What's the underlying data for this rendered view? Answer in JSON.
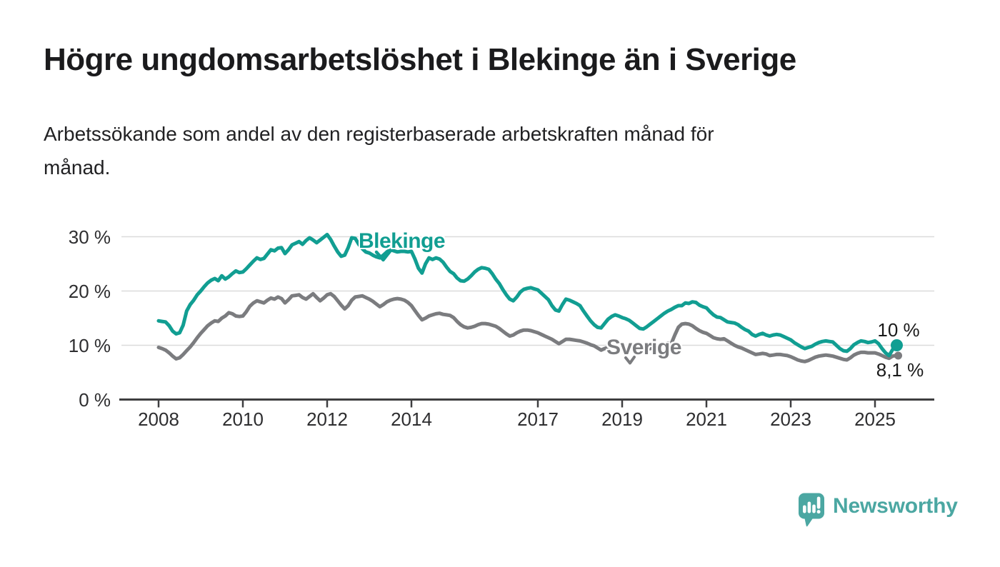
{
  "header": {
    "title": "Högre ungdomsarbetslöshet i Blekinge än i Sverige",
    "subtitle_line1": "Arbetssökande som andel av den registerbaserade arbetskraften månad för",
    "subtitle_line2": "månad."
  },
  "branding": {
    "logo_text": "Newsworthy",
    "logo_icon": "newsworthy-speech-bubble-bar-chart-icon"
  },
  "colors": {
    "blekinge": "#119e92",
    "sverige": "#7b7c7f",
    "logo_teal": "#4ba7a2",
    "grid": "#dadada",
    "axis": "#3e3e40",
    "tick_text": "#2e2e30",
    "title_text": "#1b1b1d"
  },
  "chart_data": {
    "type": "line",
    "unit": "%",
    "x_interval": "monthly",
    "x_start": {
      "year": 2008,
      "month": 1
    },
    "x_end": {
      "year": 2025,
      "month": 7
    },
    "x_tick_years": [
      2008,
      2010,
      2012,
      2014,
      2017,
      2019,
      2021,
      2023,
      2025
    ],
    "y_ticks": [
      {
        "value": 0,
        "label": "0 %"
      },
      {
        "value": 10,
        "label": "10 %"
      },
      {
        "value": 20,
        "label": "20 %"
      },
      {
        "value": 30,
        "label": "30 %"
      }
    ],
    "ylim": [
      0,
      32.5
    ],
    "grid": "horizontal",
    "legend_position": "inline-annotations",
    "series": [
      {
        "name": "Blekinge",
        "label": "Blekinge",
        "end_label": "10 %",
        "last_value": 10.0,
        "color": "#119e92",
        "values": [
          14.5,
          14.4,
          14.3,
          13.6,
          12.6,
          12.1,
          12.3,
          13.7,
          16.3,
          17.5,
          18.3,
          19.3,
          20.0,
          20.8,
          21.5,
          22.0,
          22.3,
          21.9,
          22.8,
          22.2,
          22.6,
          23.2,
          23.7,
          23.4,
          23.5,
          24.1,
          24.8,
          25.5,
          26.1,
          25.8,
          26.0,
          26.8,
          27.6,
          27.4,
          27.9,
          28.0,
          26.9,
          27.6,
          28.5,
          28.8,
          29.1,
          28.6,
          29.3,
          29.8,
          29.4,
          28.9,
          29.4,
          29.9,
          30.4,
          29.5,
          28.3,
          27.2,
          26.4,
          26.6,
          28.0,
          29.8,
          29.7,
          28.6,
          27.8,
          27.2,
          27.0,
          26.6,
          26.3,
          26.1,
          26.6,
          27.2,
          27.6,
          27.4,
          27.2,
          27.3,
          27.3,
          27.2,
          27.3,
          25.9,
          24.2,
          23.3,
          25.0,
          26.1,
          25.8,
          26.1,
          25.9,
          25.3,
          24.4,
          23.6,
          23.2,
          22.4,
          21.9,
          21.8,
          22.2,
          22.8,
          23.5,
          24.0,
          24.3,
          24.2,
          24.0,
          23.2,
          22.2,
          21.4,
          20.3,
          19.3,
          18.5,
          18.2,
          18.9,
          19.8,
          20.3,
          20.5,
          20.6,
          20.4,
          20.2,
          19.6,
          19.0,
          18.4,
          17.3,
          16.5,
          16.3,
          17.5,
          18.5,
          18.3,
          18.0,
          17.7,
          17.3,
          16.3,
          15.4,
          14.5,
          13.8,
          13.3,
          13.2,
          14.0,
          14.8,
          15.3,
          15.6,
          15.4,
          15.1,
          14.9,
          14.6,
          14.1,
          13.6,
          13.1,
          13.0,
          13.4,
          13.9,
          14.4,
          14.9,
          15.4,
          15.9,
          16.3,
          16.6,
          17.0,
          17.3,
          17.3,
          17.8,
          17.7,
          18.0,
          17.9,
          17.4,
          17.1,
          16.9,
          16.2,
          15.6,
          15.2,
          15.1,
          14.7,
          14.3,
          14.2,
          14.1,
          13.8,
          13.3,
          12.9,
          12.6,
          12.0,
          11.7,
          12.0,
          12.2,
          11.9,
          11.7,
          11.9,
          12.0,
          11.9,
          11.6,
          11.3,
          11.0,
          10.5,
          10.1,
          9.7,
          9.4,
          9.6,
          9.8,
          10.2,
          10.5,
          10.7,
          10.8,
          10.7,
          10.6,
          10.0,
          9.4,
          9.0,
          8.9,
          9.4,
          10.1,
          10.5,
          10.8,
          10.7,
          10.5,
          10.6,
          10.8,
          10.3,
          9.4,
          8.6,
          8.1,
          9.2,
          10.0
        ]
      },
      {
        "name": "Sverige",
        "label": "Sverige",
        "end_label": "8,1 %",
        "last_value": 8.1,
        "color": "#7b7c7f",
        "values": [
          9.6,
          9.4,
          9.1,
          8.6,
          8.0,
          7.5,
          7.7,
          8.3,
          9.0,
          9.7,
          10.5,
          11.4,
          12.2,
          12.9,
          13.6,
          14.1,
          14.5,
          14.4,
          15.0,
          15.4,
          16.0,
          15.8,
          15.4,
          15.3,
          15.4,
          16.2,
          17.2,
          17.8,
          18.2,
          18.0,
          17.8,
          18.3,
          18.7,
          18.5,
          18.9,
          18.6,
          17.8,
          18.4,
          19.1,
          19.2,
          19.3,
          18.8,
          18.5,
          19.0,
          19.5,
          18.8,
          18.2,
          18.7,
          19.3,
          19.5,
          19.0,
          18.2,
          17.4,
          16.7,
          17.3,
          18.3,
          18.9,
          19.0,
          19.1,
          18.8,
          18.5,
          18.1,
          17.6,
          17.1,
          17.5,
          18.0,
          18.3,
          18.5,
          18.6,
          18.5,
          18.3,
          17.9,
          17.3,
          16.4,
          15.5,
          14.7,
          15.0,
          15.4,
          15.6,
          15.8,
          15.9,
          15.7,
          15.6,
          15.5,
          15.1,
          14.4,
          13.8,
          13.4,
          13.2,
          13.3,
          13.5,
          13.8,
          14.0,
          14.0,
          13.9,
          13.7,
          13.5,
          13.1,
          12.6,
          12.1,
          11.7,
          11.9,
          12.3,
          12.6,
          12.8,
          12.8,
          12.7,
          12.5,
          12.3,
          12.0,
          11.7,
          11.4,
          11.1,
          10.7,
          10.3,
          10.7,
          11.1,
          11.1,
          11.0,
          10.9,
          10.8,
          10.6,
          10.4,
          10.1,
          9.9,
          9.5,
          9.1,
          9.4,
          9.6,
          9.6,
          9.6,
          9.5,
          9.4,
          9.4,
          9.3,
          9.3,
          9.2,
          9.2,
          9.2,
          9.3,
          9.4,
          9.6,
          9.8,
          10.0,
          10.2,
          10.4,
          10.3,
          11.9,
          13.3,
          13.9,
          14.0,
          13.9,
          13.6,
          13.1,
          12.7,
          12.4,
          12.2,
          11.8,
          11.4,
          11.2,
          11.1,
          11.2,
          10.8,
          10.4,
          10.0,
          9.7,
          9.5,
          9.2,
          8.9,
          8.6,
          8.3,
          8.4,
          8.5,
          8.4,
          8.1,
          8.2,
          8.3,
          8.3,
          8.2,
          8.1,
          7.9,
          7.6,
          7.3,
          7.1,
          7.0,
          7.2,
          7.5,
          7.8,
          8.0,
          8.1,
          8.2,
          8.1,
          8.0,
          7.8,
          7.6,
          7.4,
          7.3,
          7.7,
          8.2,
          8.5,
          8.7,
          8.7,
          8.6,
          8.6,
          8.6,
          8.4,
          8.1,
          7.8,
          7.6,
          8.0,
          8.1
        ]
      }
    ]
  }
}
